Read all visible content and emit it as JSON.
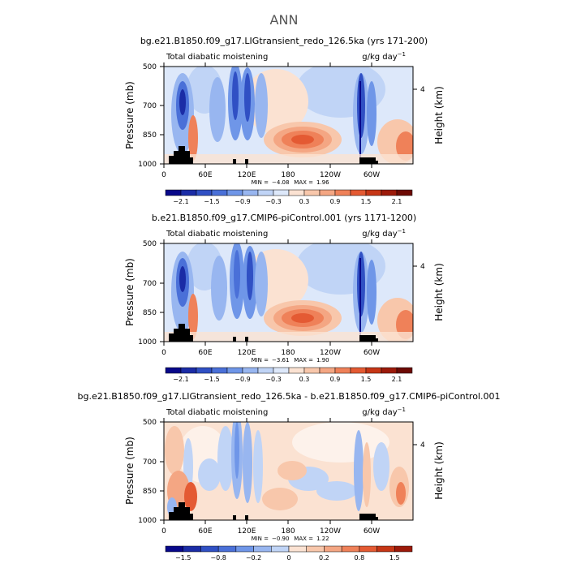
{
  "figure": {
    "title": "ANN"
  },
  "chart_data": [
    {
      "type": "heatmap",
      "title": "bg.e21.B1850.f09_g17.LIGtransient_redo_126.5ka (yrs 171-200)",
      "left_string": "Total diabatic moistening",
      "right_string": "g/kg day",
      "unit_exponent": "−1",
      "xlabel": "",
      "ylabel": "Pressure (mb)",
      "right_ylabel": "Height (km)",
      "x_ticks": [
        "0",
        "60E",
        "120E",
        "180",
        "120W",
        "60W"
      ],
      "y_ticks": [
        "500",
        "700",
        "850",
        "1000"
      ],
      "right_ticks": [
        "4"
      ],
      "ylim": [
        1000,
        500
      ],
      "min_label": "MIN =",
      "min_value": "−4.08",
      "max_label": "MAX =",
      "max_value": "1.96",
      "colorbar_ticks": [
        "−2.1",
        "−1.5",
        "−0.9",
        "−0.3",
        "0.3",
        "0.9",
        "1.5",
        "2.1"
      ],
      "colorbar_colors": [
        "#08088a",
        "#1b2ca6",
        "#3050c4",
        "#4a70d8",
        "#6f96e8",
        "#98b6f0",
        "#c0d4f6",
        "#dde8fa",
        "#fbe2d2",
        "#f8c7ab",
        "#f4a683",
        "#ef8159",
        "#e45a33",
        "#c63616",
        "#9c1a0a",
        "#6d0a04"
      ]
    },
    {
      "type": "heatmap",
      "title": "b.e21.B1850.f09_g17.CMIP6-piControl.001 (yrs 1171-1200)",
      "left_string": "Total diabatic moistening",
      "right_string": "g/kg day",
      "unit_exponent": "−1",
      "xlabel": "",
      "ylabel": "Pressure (mb)",
      "right_ylabel": "Height (km)",
      "x_ticks": [
        "0",
        "60E",
        "120E",
        "180",
        "120W",
        "60W"
      ],
      "y_ticks": [
        "500",
        "700",
        "850",
        "1000"
      ],
      "right_ticks": [
        "4"
      ],
      "ylim": [
        1000,
        500
      ],
      "min_label": "MIN =",
      "min_value": "−3.61",
      "max_label": "MAX =",
      "max_value": "1.90",
      "colorbar_ticks": [
        "−2.1",
        "−1.5",
        "−0.9",
        "−0.3",
        "0.3",
        "0.9",
        "1.5",
        "2.1"
      ],
      "colorbar_colors": [
        "#08088a",
        "#1b2ca6",
        "#3050c4",
        "#4a70d8",
        "#6f96e8",
        "#98b6f0",
        "#c0d4f6",
        "#dde8fa",
        "#fbe2d2",
        "#f8c7ab",
        "#f4a683",
        "#ef8159",
        "#e45a33",
        "#c63616",
        "#9c1a0a",
        "#6d0a04"
      ]
    },
    {
      "type": "heatmap",
      "title": "bg.e21.B1850.f09_g17.LIGtransient_redo_126.5ka - b.e21.B1850.f09_g17.CMIP6-piControl.001",
      "left_string": "Total diabatic moistening",
      "right_string": "g/kg day",
      "unit_exponent": "−1",
      "xlabel": "",
      "ylabel": "Pressure (mb)",
      "right_ylabel": "Height (km)",
      "x_ticks": [
        "0",
        "60E",
        "120E",
        "180",
        "120W",
        "60W"
      ],
      "y_ticks": [
        "500",
        "700",
        "850",
        "1000"
      ],
      "right_ticks": [
        "4"
      ],
      "ylim": [
        1000,
        500
      ],
      "min_label": "MIN =",
      "min_value": "−0.90",
      "max_label": "MAX =",
      "max_value": "1.22",
      "colorbar_ticks": [
        "−1.5",
        "−0.8",
        "−0.2",
        "0",
        "0.2",
        "0.8",
        "1.5"
      ],
      "colorbar_colors": [
        "#08088a",
        "#1b2ca6",
        "#3050c4",
        "#4a70d8",
        "#6f96e8",
        "#98b6f0",
        "#c0d4f6",
        "#fbe2d2",
        "#f8c7ab",
        "#f4a683",
        "#ef8159",
        "#e45a33",
        "#c63616",
        "#9c1a0a"
      ]
    }
  ]
}
